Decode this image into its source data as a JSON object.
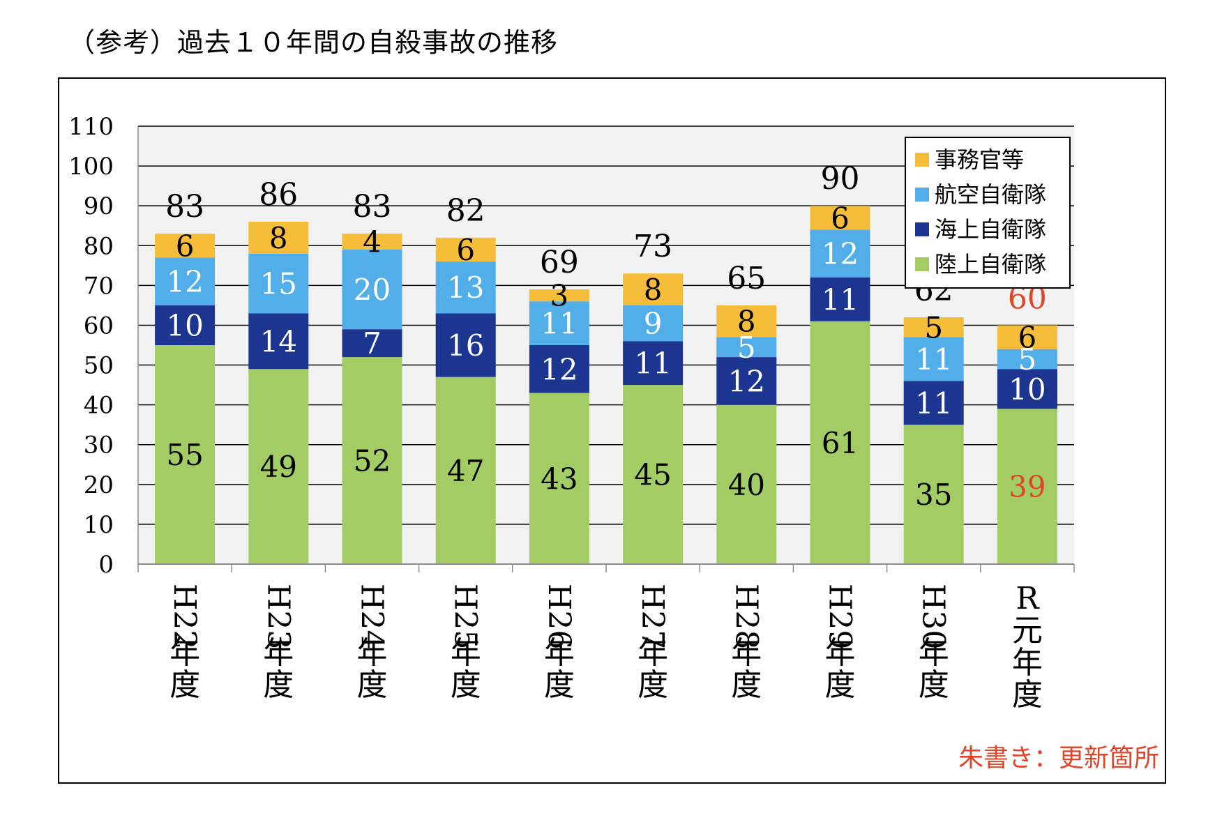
{
  "page_title": "（参考）過去１０年間の自殺事故の推移",
  "update_note": "朱書き：更新箇所",
  "colors": {
    "gsdf": "#a3cc65",
    "msdf": "#1b3591",
    "asdf": "#52aee8",
    "civilian": "#f6bd3b",
    "highlight": "#e0452a",
    "plot_bg": "#f2f2f2",
    "grid": "#000000"
  },
  "chart_data": {
    "type": "bar",
    "stacked": true,
    "title": "",
    "xlabel": "",
    "ylabel": "",
    "ylim": [
      0,
      110
    ],
    "yticks": [
      "0",
      "10",
      "20",
      "30",
      "40",
      "50",
      "60",
      "70",
      "80",
      "90",
      "100",
      "110"
    ],
    "grid": true,
    "legend_position": "top-right",
    "categories": [
      "H22年度",
      "H23年度",
      "H24年度",
      "H25年度",
      "H26年度",
      "H27年度",
      "H28年度",
      "H29年度",
      "H30年度",
      "R元年度"
    ],
    "series": [
      {
        "name": "陸上自衛隊",
        "color": "#a3cc65",
        "values": [
          55,
          49,
          52,
          47,
          43,
          45,
          40,
          61,
          35,
          39
        ],
        "label_color": "#000000"
      },
      {
        "name": "海上自衛隊",
        "color": "#1b3591",
        "values": [
          10,
          14,
          7,
          16,
          12,
          11,
          12,
          11,
          11,
          10
        ],
        "label_color": "#ffffff"
      },
      {
        "name": "航空自衛隊",
        "color": "#52aee8",
        "values": [
          12,
          15,
          20,
          13,
          11,
          9,
          5,
          12,
          11,
          5
        ],
        "label_color": "#ffffff"
      },
      {
        "name": "事務官等",
        "color": "#f6bd3b",
        "values": [
          6,
          8,
          4,
          6,
          3,
          8,
          8,
          6,
          5,
          6
        ],
        "label_color": "#000000"
      }
    ],
    "totals": [
      83,
      86,
      83,
      82,
      69,
      73,
      65,
      90,
      62,
      60
    ],
    "highlighted_labels": [
      {
        "category": "R元年度",
        "series": "陸上自衛隊"
      },
      {
        "category": "R元年度",
        "series": "total"
      }
    ]
  }
}
